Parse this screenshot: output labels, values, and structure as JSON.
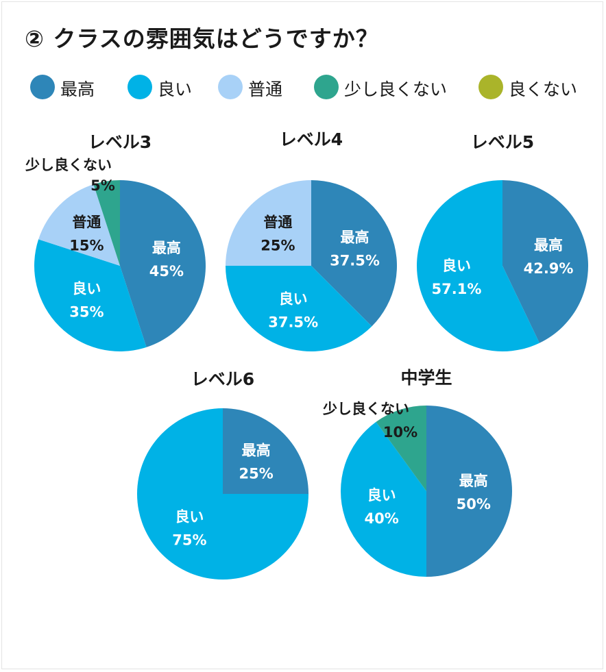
{
  "title": "② クラスの雰囲気はどうですか？",
  "legend": [
    {
      "label": "最高",
      "color": "#2e86b8"
    },
    {
      "label": "良い",
      "color": "#00b2e6"
    },
    {
      "label": "普通",
      "color": "#a8d1f7"
    },
    {
      "label": "少し良くない",
      "color": "#2ea58e"
    },
    {
      "label": "良くない",
      "color": "#aab42a"
    }
  ],
  "chart_data": [
    {
      "type": "pie",
      "title": "レベル3",
      "slices": [
        {
          "label": "最高",
          "value": 45,
          "value_label": "45%"
        },
        {
          "label": "良い",
          "value": 35,
          "value_label": "35%"
        },
        {
          "label": "普通",
          "value": 15,
          "value_label": "15%"
        },
        {
          "label": "少し良くない",
          "value": 5,
          "value_label": "5%"
        }
      ]
    },
    {
      "type": "pie",
      "title": "レベル4",
      "slices": [
        {
          "label": "最高",
          "value": 37.5,
          "value_label": "37.5%"
        },
        {
          "label": "良い",
          "value": 37.5,
          "value_label": "37.5%"
        },
        {
          "label": "普通",
          "value": 25,
          "value_label": "25%"
        }
      ]
    },
    {
      "type": "pie",
      "title": "レベル5",
      "slices": [
        {
          "label": "最高",
          "value": 42.9,
          "value_label": "42.9%"
        },
        {
          "label": "良い",
          "value": 57.1,
          "value_label": "57.1%"
        }
      ]
    },
    {
      "type": "pie",
      "title": "レベル6",
      "slices": [
        {
          "label": "最高",
          "value": 25,
          "value_label": "25%"
        },
        {
          "label": "良い",
          "value": 75,
          "value_label": "75%"
        }
      ]
    },
    {
      "type": "pie",
      "title": "中学生",
      "slices": [
        {
          "label": "最高",
          "value": 50,
          "value_label": "50%"
        },
        {
          "label": "良い",
          "value": 40,
          "value_label": "40%"
        },
        {
          "label": "少し良くない",
          "value": 10,
          "value_label": "10%"
        }
      ]
    }
  ]
}
